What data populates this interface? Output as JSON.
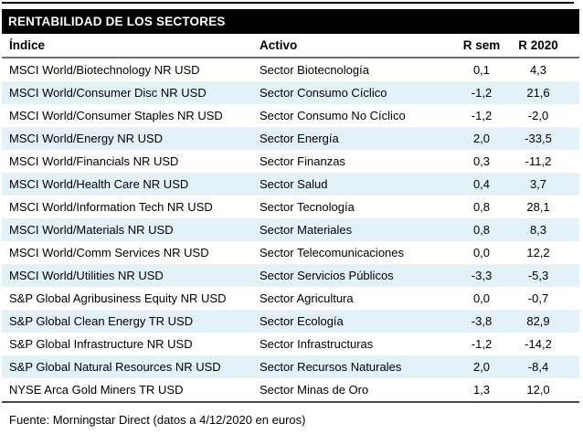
{
  "title": "RENTABILIDAD DE LOS SECTORES",
  "columns": {
    "indice": "Índice",
    "activo": "Activo",
    "r_sem": "R sem",
    "r_2020": "R 2020"
  },
  "table": {
    "rows": [
      {
        "indice": "MSCI World/Biotechnology NR USD",
        "activo": "Sector Biotecnología",
        "r_sem": "0,1",
        "r_2020": "4,3"
      },
      {
        "indice": "MSCI World/Consumer Disc NR USD",
        "activo": "Sector Consumo Cíclico",
        "r_sem": "-1,2",
        "r_2020": "21,6"
      },
      {
        "indice": "MSCI World/Consumer Staples NR USD",
        "activo": "Sector Consumo No Cíclico",
        "r_sem": "-1,2",
        "r_2020": "-2,0"
      },
      {
        "indice": "MSCI World/Energy NR USD",
        "activo": "Sector Energía",
        "r_sem": "2,0",
        "r_2020": "-33,5"
      },
      {
        "indice": "MSCI World/Financials NR USD",
        "activo": "Sector Finanzas",
        "r_sem": "0,3",
        "r_2020": "-11,2"
      },
      {
        "indice": "MSCI World/Health Care NR USD",
        "activo": "Sector Salud",
        "r_sem": "0,4",
        "r_2020": "3,7"
      },
      {
        "indice": "MSCI World/Information Tech NR USD",
        "activo": "Sector Tecnología",
        "r_sem": "0,8",
        "r_2020": "28,1"
      },
      {
        "indice": "MSCI World/Materials NR USD",
        "activo": "Sector Materiales",
        "r_sem": "0,8",
        "r_2020": "8,3"
      },
      {
        "indice": "MSCI World/Comm Services NR USD",
        "activo": "Sector Telecomunicaciones",
        "r_sem": "0,0",
        "r_2020": "12,2"
      },
      {
        "indice": "MSCI World/Utilities NR USD",
        "activo": "Sector Servicios Públicos",
        "r_sem": "-3,3",
        "r_2020": "-5,3"
      },
      {
        "indice": "S&P Global Agribusiness Equity NR USD",
        "activo": "Sector Agricultura",
        "r_sem": "0,0",
        "r_2020": "-0,7"
      },
      {
        "indice": "S&P Global Clean Energy TR USD",
        "activo": "Sector Ecología",
        "r_sem": "-3,8",
        "r_2020": "82,9"
      },
      {
        "indice": "S&P Global Infrastructure NR USD",
        "activo": "Sector Infrastructuras",
        "r_sem": "-1,2",
        "r_2020": "-14,2"
      },
      {
        "indice": "S&P Global Natural Resources NR USD",
        "activo": "Sector Recursos Naturales",
        "r_sem": "2,0",
        "r_2020": "-8,4"
      },
      {
        "indice": "NYSE Arca Gold Miners TR USD",
        "activo": "Sector Minas de Oro",
        "r_sem": "1,3",
        "r_2020": "12,0"
      }
    ]
  },
  "footer": "Fuente: Morningstar Direct (datos a 4/12/2020 en euros)",
  "colors": {
    "title_bar_bg": "#000000",
    "title_bar_text": "#ffffff",
    "alt_row_bg": "#e3f1f8",
    "header_rule": "#6e6e6e",
    "footer_rule": "#4a4a4a",
    "body_text": "#000000"
  }
}
